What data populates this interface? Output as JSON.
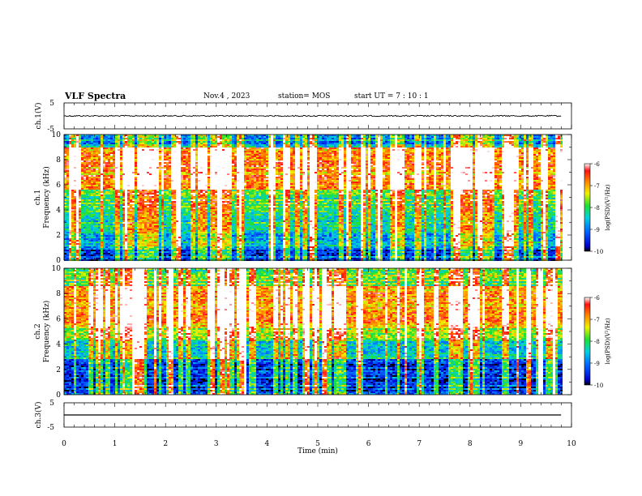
{
  "header": {
    "title": "VLF Spectra",
    "date": "Nov.4 , 2023",
    "station": "station= MOS",
    "start_ut": "start UT = 7 : 10 : 1"
  },
  "chart_data": [
    {
      "type": "line",
      "panel": "ch1-waveform",
      "ylabel": "ch.1(V)",
      "ylim": [
        -5,
        5
      ],
      "yticks": [
        "5",
        "-5"
      ],
      "xlim": [
        0,
        10
      ],
      "series": [
        {
          "x": [
            0,
            9.8
          ],
          "y": [
            0,
            0
          ]
        }
      ]
    },
    {
      "type": "heatmap",
      "panel": "ch1-spectrogram",
      "ylabel": "ch.1 Frequency (kHz)",
      "ylim": [
        0,
        10
      ],
      "yticks": [
        "0",
        "2",
        "4",
        "6",
        "8",
        "10"
      ],
      "xlim": [
        0,
        10
      ],
      "data_xmax": 9.8,
      "colorbar": {
        "label": "log(PSD)(V²/Hz)",
        "range": [
          -10,
          -6
        ],
        "ticks": [
          "-6",
          "-7",
          "-8",
          "-9",
          "-10"
        ]
      },
      "bands_kHz": [
        [
          0,
          1,
          -9.2
        ],
        [
          1,
          2.6,
          -8.6
        ],
        [
          2.6,
          4.2,
          -8.2
        ],
        [
          4.2,
          5.6,
          -8.0
        ],
        [
          5.6,
          9.0,
          -6.8
        ],
        [
          9.0,
          10,
          -8.8
        ]
      ]
    },
    {
      "type": "heatmap",
      "panel": "ch2-spectrogram",
      "ylabel": "ch.2 Frequency (kHz)",
      "ylim": [
        0,
        10
      ],
      "yticks": [
        "0",
        "2",
        "4",
        "6",
        "8",
        "10"
      ],
      "xlim": [
        0,
        10
      ],
      "data_xmax": 9.8,
      "colorbar": {
        "label": "log(PSD)(V²/Hz)",
        "range": [
          -10,
          -6
        ],
        "ticks": [
          "-6",
          "-7",
          "-8",
          "-9",
          "-10"
        ]
      },
      "bands_kHz": [
        [
          0,
          2.8,
          -9.4
        ],
        [
          2.8,
          4.4,
          -8.4
        ],
        [
          4.4,
          5.4,
          -7.6
        ],
        [
          5.4,
          8.6,
          -6.9
        ],
        [
          8.6,
          10,
          -7.8
        ]
      ]
    },
    {
      "type": "line",
      "panel": "ch3-waveform",
      "ylabel": "ch.3(V)",
      "ylim": [
        -5,
        5
      ],
      "yticks": [
        "5",
        "-5"
      ],
      "xlim": [
        0,
        10
      ],
      "series": [
        {
          "x": [
            0,
            9.8
          ],
          "y": [
            0,
            0
          ]
        }
      ]
    }
  ],
  "xaxis": {
    "label": "Time (min)",
    "ticks": [
      "0",
      "1",
      "2",
      "3",
      "4",
      "5",
      "6",
      "7",
      "8",
      "9",
      "10"
    ]
  }
}
